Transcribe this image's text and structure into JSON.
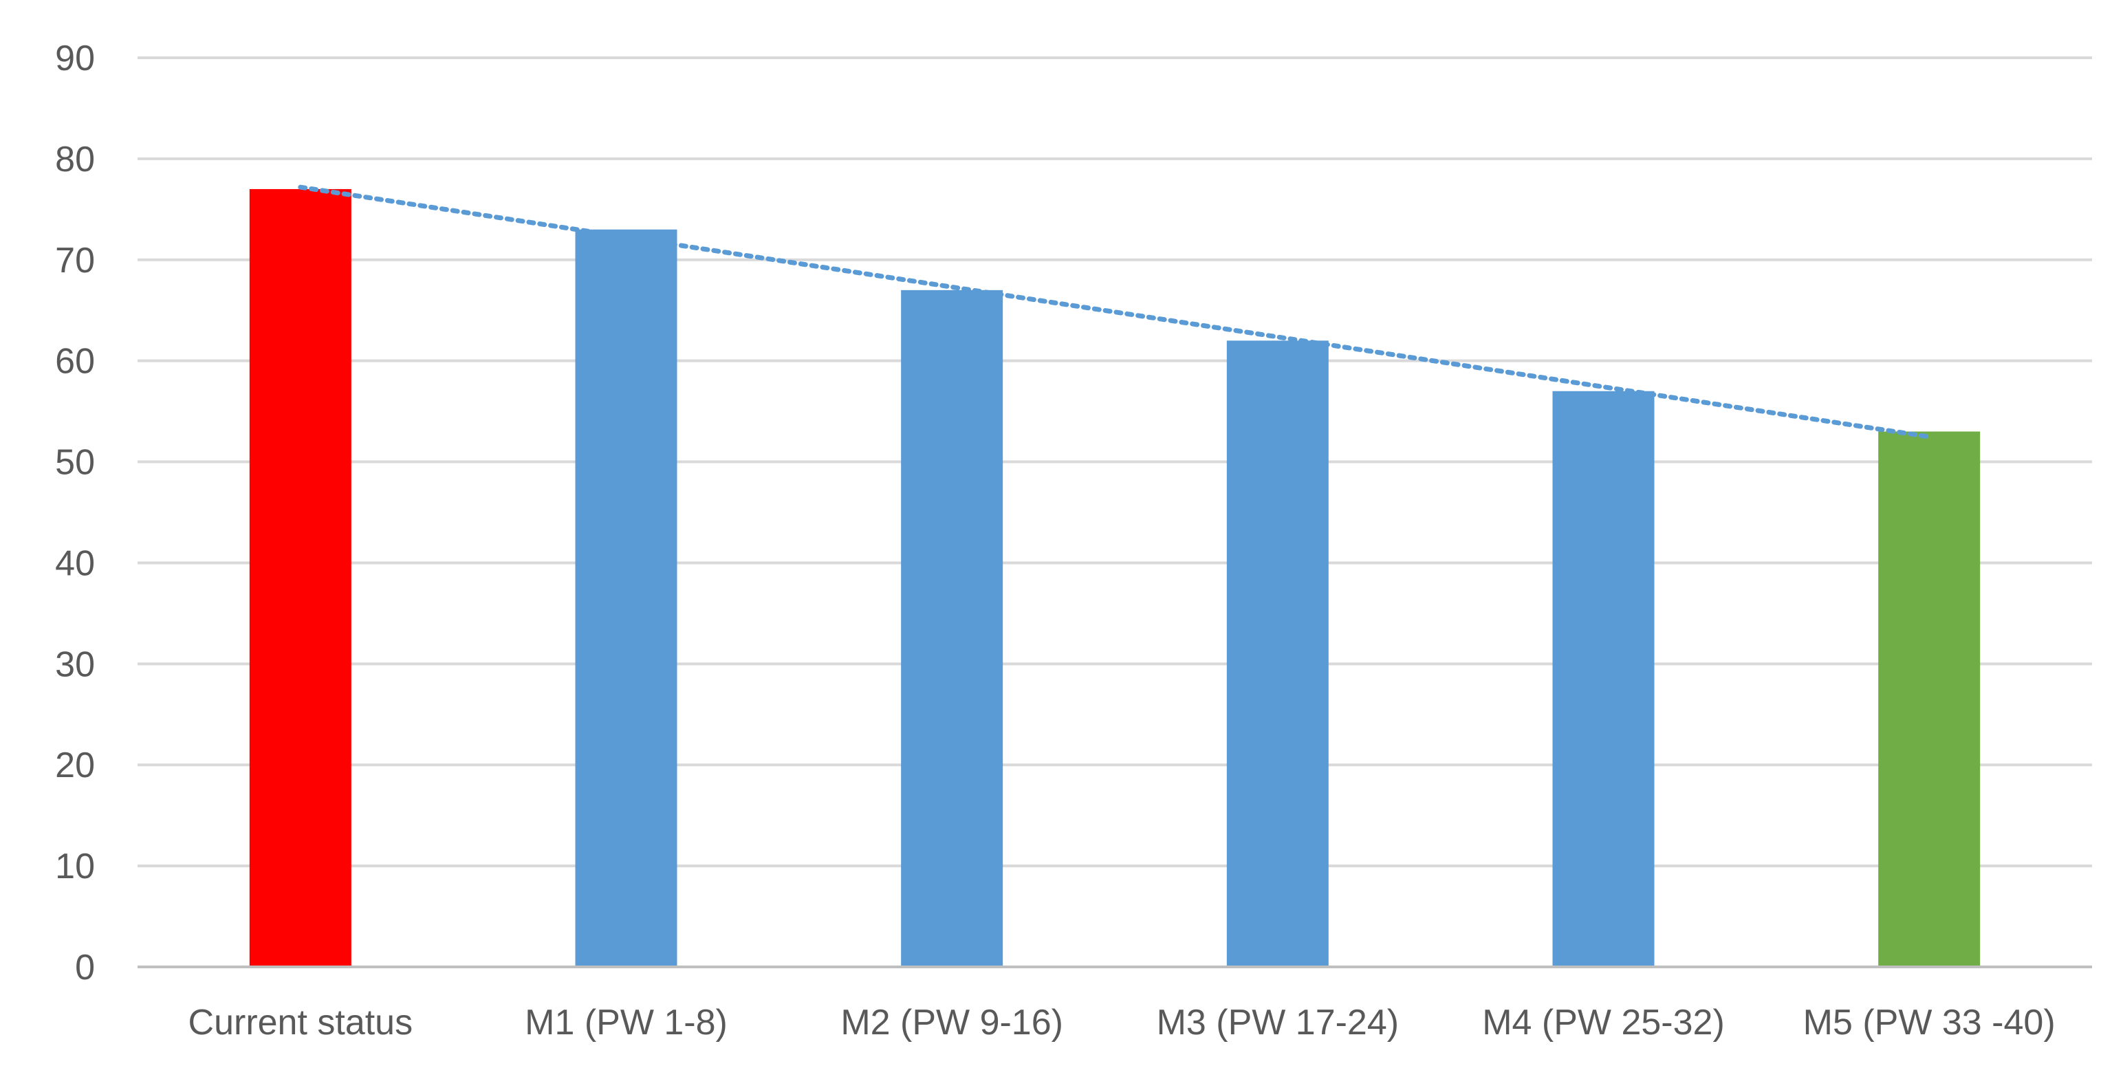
{
  "chart_data": {
    "type": "bar",
    "title": "",
    "xlabel": "",
    "ylabel": "",
    "categories": [
      "Current status",
      "M1 (PW 1-8)",
      "M2 (PW 9-16)",
      "M3 (PW 17-24)",
      "M4 (PW 25-32)",
      "M5 (PW 33 -40)"
    ],
    "values": [
      77,
      73,
      67,
      62,
      57,
      53
    ],
    "bar_colors": [
      "#ff0000",
      "#5b9bd5",
      "#5b9bd5",
      "#5b9bd5",
      "#5b9bd5",
      "#70ad47"
    ],
    "ylim": [
      0,
      90
    ],
    "yticks": [
      0,
      10,
      20,
      30,
      40,
      50,
      60,
      70,
      80,
      90
    ],
    "grid": true,
    "legend": "none",
    "trendline": {
      "type": "linear",
      "style": "dotted",
      "color": "#5b9bd5"
    }
  }
}
